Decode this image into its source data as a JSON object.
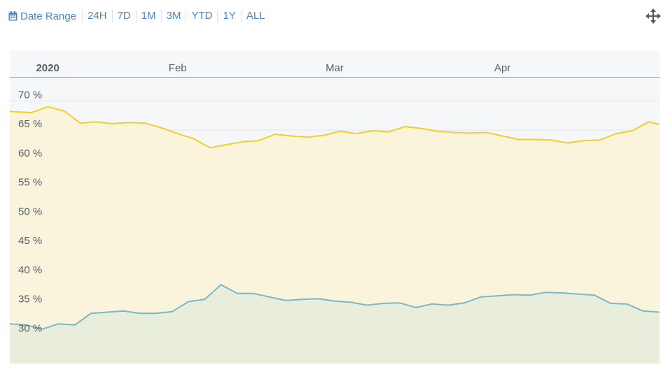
{
  "toolbar": {
    "date_range_label": "Date Range",
    "date_range_icon": "calendar-icon",
    "ranges": [
      "24H",
      "7D",
      "1M",
      "3M",
      "YTD",
      "1Y",
      "ALL"
    ],
    "fullscreen_icon": "move-arrows-icon",
    "accent_color": "#4a85c5"
  },
  "chart_data": {
    "type": "area",
    "x_ticks": [
      "2020",
      "Feb",
      "Mar",
      "Apr"
    ],
    "y_ticks": [
      "30 %",
      "35 %",
      "40 %",
      "45 %",
      "50 %",
      "55 %",
      "60 %",
      "65 %",
      "70 %"
    ],
    "ylim": [
      25,
      74
    ],
    "xlim": [
      "2020-01-01",
      "2020-04-30"
    ],
    "grid": true,
    "legend": "none",
    "series": [
      {
        "color": "#f3cd2d",
        "fill": "#fbf4dc",
        "x": [
          "2020-01-01",
          "2020-01-05",
          "2020-01-08",
          "2020-01-11",
          "2020-01-14",
          "2020-01-17",
          "2020-01-20",
          "2020-01-23",
          "2020-01-26",
          "2020-01-29",
          "2020-02-01",
          "2020-02-04",
          "2020-02-07",
          "2020-02-10",
          "2020-02-13",
          "2020-02-16",
          "2020-02-19",
          "2020-02-22",
          "2020-02-25",
          "2020-02-28",
          "2020-03-02",
          "2020-03-05",
          "2020-03-08",
          "2020-03-11",
          "2020-03-14",
          "2020-03-17",
          "2020-03-20",
          "2020-03-23",
          "2020-03-26",
          "2020-03-29",
          "2020-04-01",
          "2020-04-04",
          "2020-04-07",
          "2020-04-10",
          "2020-04-13",
          "2020-04-16",
          "2020-04-19",
          "2020-04-22",
          "2020-04-25",
          "2020-04-28",
          "2020-04-30"
        ],
        "y": [
          68.2,
          68.0,
          69.0,
          68.3,
          66.2,
          66.4,
          66.1,
          66.3,
          66.2,
          65.4,
          64.4,
          63.5,
          62.0,
          62.5,
          63.0,
          63.2,
          64.3,
          64.0,
          63.8,
          64.1,
          64.8,
          64.4,
          64.9,
          64.7,
          65.6,
          65.3,
          64.8,
          64.6,
          64.5,
          64.6,
          64.0,
          63.4,
          63.4,
          63.3,
          62.8,
          63.2,
          63.3,
          64.4,
          64.9,
          66.4,
          66.0
        ]
      },
      {
        "color": "#79b9c5",
        "fill": "#e9eedc",
        "x": [
          "2020-01-01",
          "2020-01-04",
          "2020-01-07",
          "2020-01-10",
          "2020-01-13",
          "2020-01-16",
          "2020-01-19",
          "2020-01-22",
          "2020-01-25",
          "2020-01-28",
          "2020-01-31",
          "2020-02-03",
          "2020-02-06",
          "2020-02-09",
          "2020-02-12",
          "2020-02-15",
          "2020-02-18",
          "2020-02-21",
          "2020-02-24",
          "2020-02-27",
          "2020-03-01",
          "2020-03-04",
          "2020-03-07",
          "2020-03-10",
          "2020-03-13",
          "2020-03-16",
          "2020-03-19",
          "2020-03-22",
          "2020-03-25",
          "2020-03-28",
          "2020-03-31",
          "2020-04-03",
          "2020-04-06",
          "2020-04-09",
          "2020-04-12",
          "2020-04-15",
          "2020-04-18",
          "2020-04-21",
          "2020-04-24",
          "2020-04-27",
          "2020-04-30"
        ],
        "y": [
          31.8,
          31.6,
          30.9,
          31.8,
          31.6,
          33.6,
          33.8,
          34.0,
          33.6,
          33.6,
          33.9,
          35.6,
          36.0,
          38.5,
          37.0,
          37.0,
          36.4,
          35.8,
          36.0,
          36.1,
          35.7,
          35.5,
          35.0,
          35.3,
          35.4,
          34.6,
          35.2,
          35.0,
          35.4,
          36.4,
          36.6,
          36.8,
          36.7,
          37.2,
          37.1,
          36.9,
          36.7,
          35.3,
          35.2,
          34.0,
          33.8
        ]
      }
    ]
  }
}
